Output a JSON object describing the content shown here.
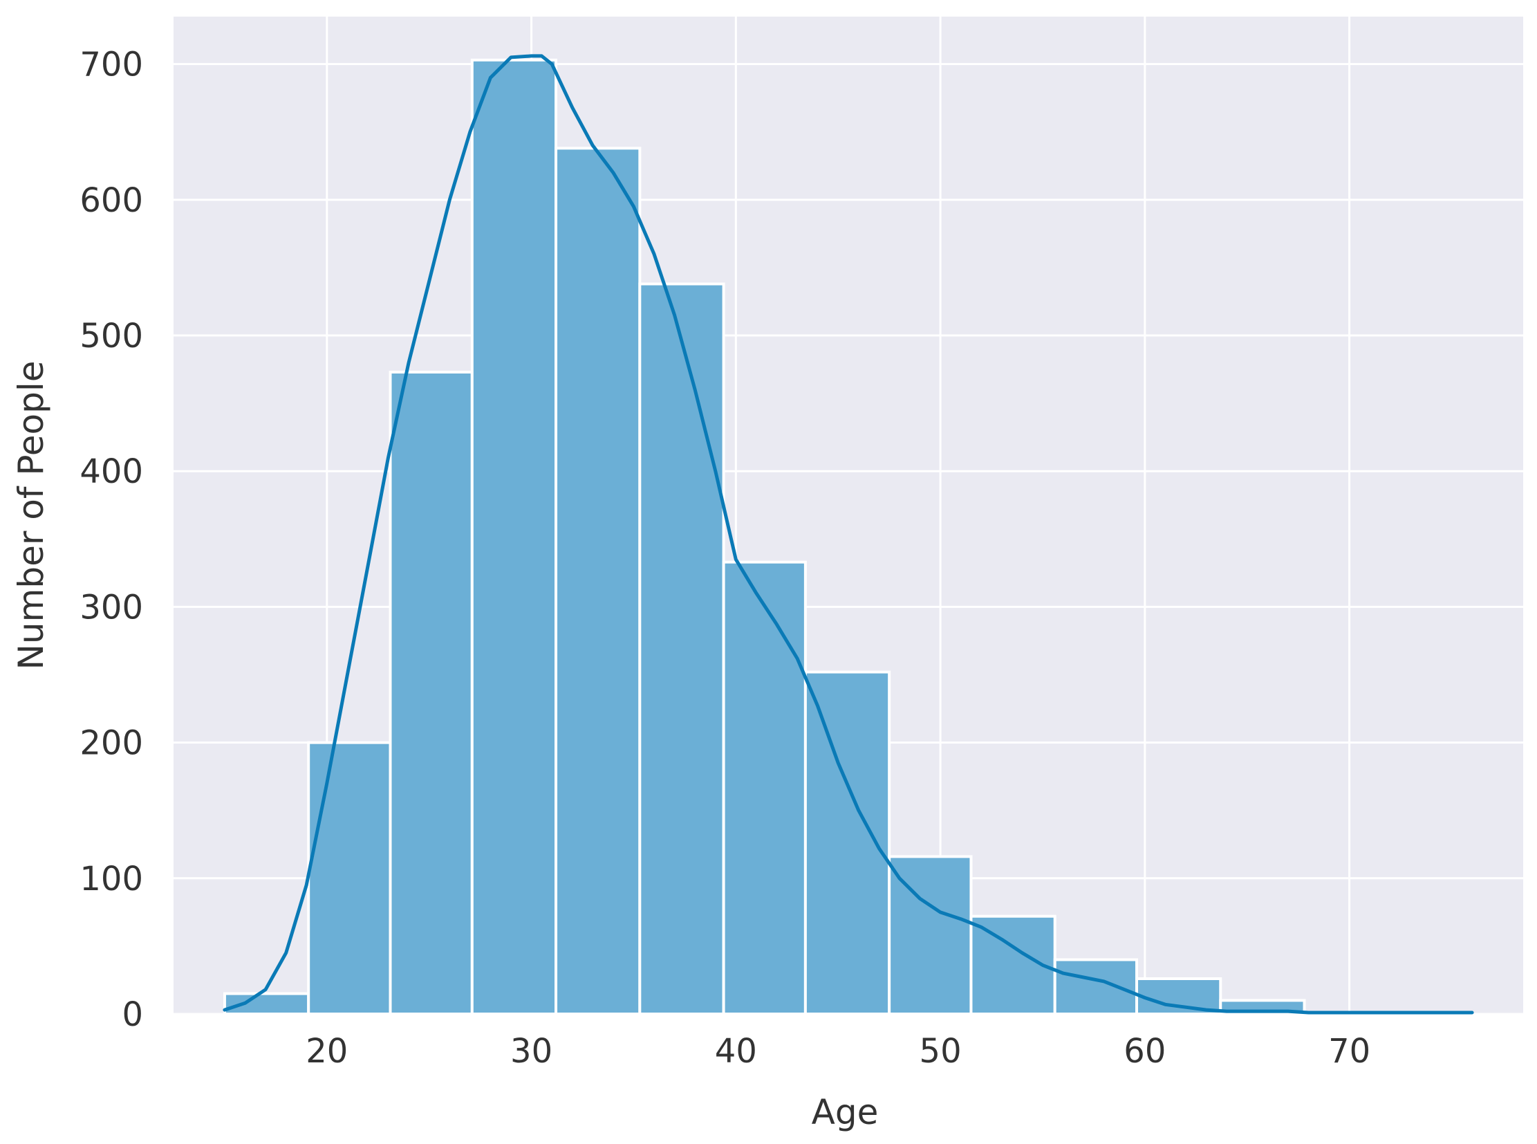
{
  "chart_data": {
    "type": "bar",
    "subtype": "histogram-with-kde",
    "xlabel": "Age",
    "ylabel": "Number of People",
    "xlim": [
      12.5,
      78.5
    ],
    "ylim": [
      0,
      735
    ],
    "x_ticks": [
      20,
      30,
      40,
      50,
      60,
      70
    ],
    "y_ticks": [
      0,
      100,
      200,
      300,
      400,
      500,
      600,
      700
    ],
    "grid": true,
    "colors": {
      "background": "#eaeaf2",
      "grid": "#ffffff",
      "bar_fill": "#6bafd6",
      "bar_edge": "#ffffff",
      "kde_line": "#0a7ab6"
    },
    "bins": [
      {
        "start": 15.0,
        "end": 19.1,
        "value": 15
      },
      {
        "start": 19.1,
        "end": 23.1,
        "value": 200
      },
      {
        "start": 23.1,
        "end": 27.1,
        "value": 473
      },
      {
        "start": 27.1,
        "end": 31.2,
        "value": 703
      },
      {
        "start": 31.2,
        "end": 35.3,
        "value": 638
      },
      {
        "start": 35.3,
        "end": 39.4,
        "value": 538
      },
      {
        "start": 39.4,
        "end": 43.4,
        "value": 333
      },
      {
        "start": 43.4,
        "end": 47.5,
        "value": 252
      },
      {
        "start": 47.5,
        "end": 51.5,
        "value": 116
      },
      {
        "start": 51.5,
        "end": 55.6,
        "value": 72
      },
      {
        "start": 55.6,
        "end": 59.6,
        "value": 40
      },
      {
        "start": 59.6,
        "end": 63.7,
        "value": 26
      },
      {
        "start": 63.7,
        "end": 67.8,
        "value": 10
      },
      {
        "start": 67.8,
        "end": 71.8,
        "value": 0
      },
      {
        "start": 71.8,
        "end": 75.8,
        "value": 0
      }
    ],
    "kde": {
      "x": [
        15,
        16,
        17,
        18,
        19,
        20,
        21,
        22,
        23,
        24,
        25,
        26,
        27,
        28,
        29,
        30,
        30.5,
        31,
        32,
        33,
        34,
        35,
        36,
        37,
        38,
        39,
        40,
        41,
        42,
        43,
        44,
        45,
        46,
        47,
        48,
        49,
        50,
        51,
        52,
        53,
        54,
        55,
        56,
        57,
        58,
        59,
        60,
        61,
        62,
        63,
        64,
        65,
        66,
        67,
        68,
        69,
        70,
        72,
        74,
        76
      ],
      "y": [
        3,
        8,
        18,
        45,
        95,
        170,
        250,
        330,
        410,
        480,
        540,
        600,
        650,
        690,
        705,
        706,
        706,
        700,
        668,
        640,
        620,
        595,
        560,
        515,
        460,
        400,
        335,
        310,
        287,
        262,
        227,
        185,
        150,
        122,
        100,
        85,
        75,
        70,
        64,
        55,
        45,
        36,
        30,
        27,
        24,
        18,
        12,
        7,
        5,
        3,
        2,
        2,
        2,
        2,
        1,
        1,
        1,
        1,
        1,
        1
      ]
    }
  }
}
